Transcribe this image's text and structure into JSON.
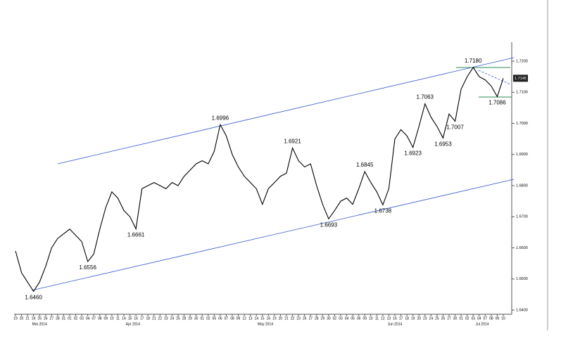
{
  "chart_data": {
    "type": "line",
    "categories": [
      "19",
      "20",
      "21",
      "24",
      "25",
      "26",
      "27",
      "28",
      "31",
      "01",
      "02",
      "03",
      "04",
      "07",
      "08",
      "09",
      "10",
      "11",
      "14",
      "15",
      "16",
      "17",
      "18",
      "21",
      "22",
      "23",
      "24",
      "25",
      "28",
      "29",
      "30",
      "01",
      "02",
      "05",
      "06",
      "07",
      "08",
      "09",
      "12",
      "13",
      "14",
      "15",
      "16",
      "19",
      "20",
      "21",
      "22",
      "23",
      "26",
      "27",
      "28",
      "29",
      "30",
      "02",
      "03",
      "04",
      "05",
      "06",
      "09",
      "10",
      "11",
      "12",
      "13",
      "16",
      "17",
      "18",
      "19",
      "20",
      "23",
      "24",
      "25",
      "26",
      "27",
      "30",
      "01",
      "02",
      "03",
      "04",
      "07",
      "08",
      "09",
      "10"
    ],
    "month_labels": [
      "Mar 2014",
      "Apr 2014",
      "May 2014",
      "Jun 2014",
      "Jul 2014"
    ],
    "values": [
      1.659,
      1.652,
      1.649,
      1.646,
      1.649,
      1.654,
      1.66,
      1.663,
      1.6645,
      1.666,
      1.664,
      1.662,
      1.6556,
      1.658,
      1.666,
      1.673,
      1.678,
      1.676,
      1.672,
      1.67,
      1.6661,
      1.679,
      1.68,
      1.681,
      1.68,
      1.679,
      1.681,
      1.68,
      1.683,
      1.685,
      1.687,
      1.688,
      1.687,
      1.691,
      1.6996,
      1.696,
      1.69,
      1.686,
      1.683,
      1.681,
      1.679,
      1.674,
      1.679,
      1.681,
      1.683,
      1.684,
      1.6921,
      1.688,
      1.686,
      1.687,
      1.68,
      1.674,
      1.6693,
      1.672,
      1.675,
      1.676,
      1.674,
      1.679,
      1.6845,
      1.681,
      1.678,
      1.6738,
      1.679,
      1.695,
      1.698,
      1.696,
      1.6923,
      1.699,
      1.7063,
      1.702,
      1.699,
      1.6953,
      1.703,
      1.7007,
      1.711,
      1.715,
      1.718,
      1.715,
      1.714,
      1.712,
      1.7086,
      1.7145
    ],
    "value_labels": [
      null,
      null,
      null,
      "1.6460",
      null,
      null,
      null,
      null,
      null,
      null,
      null,
      null,
      "1.6556",
      null,
      null,
      null,
      null,
      null,
      null,
      null,
      "1.6661",
      null,
      null,
      null,
      null,
      null,
      null,
      null,
      null,
      null,
      null,
      null,
      null,
      null,
      "1.6996",
      null,
      null,
      null,
      null,
      null,
      null,
      null,
      null,
      null,
      null,
      null,
      "1.6921",
      null,
      null,
      null,
      null,
      null,
      "1.6693",
      null,
      null,
      null,
      null,
      null,
      "1.6845",
      null,
      null,
      "1.6738",
      null,
      null,
      null,
      null,
      "1.6923",
      null,
      "1.7063",
      null,
      null,
      "1.6953",
      null,
      "1.7007",
      null,
      null,
      "1.7180",
      null,
      null,
      null,
      "1.7086",
      null
    ],
    "color": "#000000",
    "ylim": [
      1.64,
      1.72
    ],
    "yticks": [
      {
        "value": 1.64,
        "label": "1.6400"
      },
      {
        "value": 1.65,
        "label": "1.6500"
      },
      {
        "value": 1.66,
        "label": "1.6600"
      },
      {
        "value": 1.67,
        "label": "1.6700"
      },
      {
        "value": 1.68,
        "label": "1.6800"
      },
      {
        "value": 1.69,
        "label": "1.6900"
      },
      {
        "value": 1.7,
        "label": "1.7000"
      },
      {
        "value": 1.71,
        "label": "1.7100"
      },
      {
        "value": 1.72,
        "label": "1.7200"
      }
    ],
    "last_price": {
      "value": 1.7145,
      "label": "1.7145"
    }
  }
}
